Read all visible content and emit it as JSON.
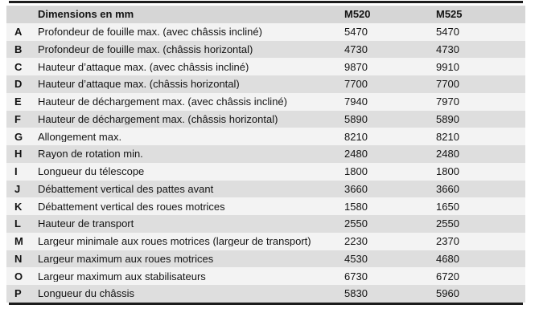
{
  "table": {
    "header": {
      "dimension_label": "Dimensions en mm",
      "col1": "M520",
      "col2": "M525"
    },
    "rows": [
      {
        "letter": "A",
        "label": "Profondeur de fouille max. (avec châssis incliné)",
        "m520": "5470",
        "m525": "5470"
      },
      {
        "letter": "B",
        "label": "Profondeur de fouille max. (châssis horizontal)",
        "m520": "4730",
        "m525": "4730"
      },
      {
        "letter": "C",
        "label": "Hauteur d’attaque max. (avec châssis incliné)",
        "m520": "9870",
        "m525": "9910"
      },
      {
        "letter": "D",
        "label": "Hauteur d’attaque max. (châssis horizontal)",
        "m520": "7700",
        "m525": "7700"
      },
      {
        "letter": "E",
        "label": "Hauteur de déchargement max. (avec châssis incliné)",
        "m520": "7940",
        "m525": "7970"
      },
      {
        "letter": "F",
        "label": "Hauteur de déchargement max. (châssis horizontal)",
        "m520": "5890",
        "m525": "5890"
      },
      {
        "letter": "G",
        "label": "Allongement max.",
        "m520": "8210",
        "m525": "8210"
      },
      {
        "letter": "H",
        "label": "Rayon de rotation min.",
        "m520": "2480",
        "m525": "2480"
      },
      {
        "letter": "I",
        "label": "Longueur du télescope",
        "m520": "1800",
        "m525": "1800"
      },
      {
        "letter": "J",
        "label": "Débattement vertical des pattes avant",
        "m520": "3660",
        "m525": "3660"
      },
      {
        "letter": "K",
        "label": "Débattement vertical des roues motrices",
        "m520": "1580",
        "m525": "1650"
      },
      {
        "letter": "L",
        "label": "Hauteur de transport",
        "m520": "2550",
        "m525": "2550"
      },
      {
        "letter": "M",
        "label": "Largeur minimale aux roues motrices (largeur de transport)",
        "m520": "2230",
        "m525": "2370"
      },
      {
        "letter": "N",
        "label": "Largeur maximum aux roues motrices",
        "m520": "4530",
        "m525": "4680"
      },
      {
        "letter": "O",
        "label": "Largeur maximum aux stabilisateurs",
        "m520": "6730",
        "m525": "6720"
      },
      {
        "letter": "P",
        "label": "Longueur du châssis",
        "m520": "5830",
        "m525": "5960"
      }
    ],
    "colors": {
      "rule": "#1c1c1c",
      "header_bg": "#d6d6d6",
      "row_odd_bg": "#f3f3f3",
      "row_even_bg": "#dedede",
      "text": "#141414"
    }
  }
}
